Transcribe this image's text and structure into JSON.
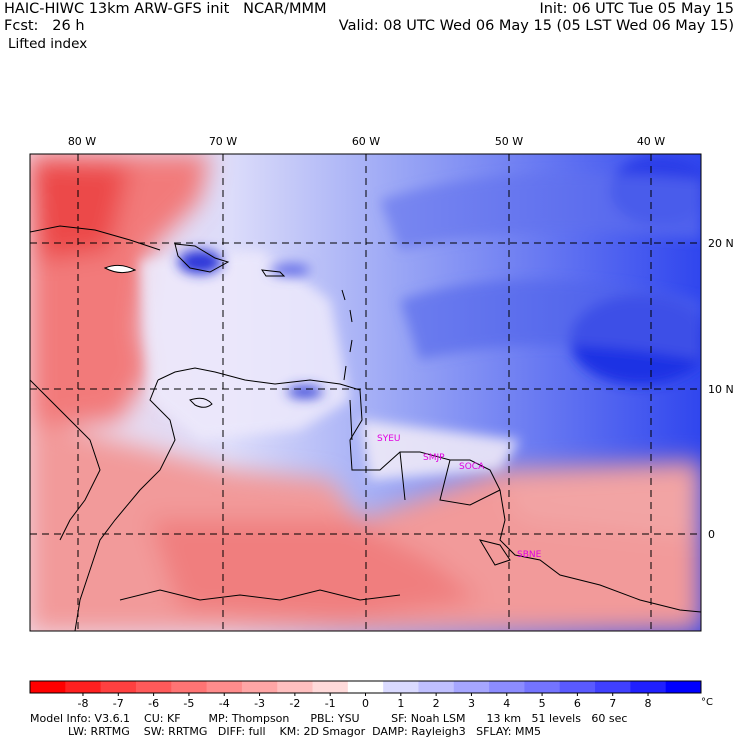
{
  "header": {
    "line1_left": "HAIC-HIWC 13km ARW-GFS init   NCAR/MMM",
    "line2_left": "Fcst:   26 h",
    "line1_right": "Init: 06 UTC Tue 05 May 15",
    "line2_right": "Valid: 08 UTC Wed 06 May 15 (05 LST Wed 06 May 15)",
    "field": "Lifted index"
  },
  "map": {
    "lon_labels": [
      "80 W",
      "70 W",
      "60 W",
      "50 W",
      "40 W"
    ],
    "lat_labels": [
      "20 N",
      "10 N",
      "0"
    ],
    "stations": [
      "SYEU",
      "SMJP",
      "SOCA",
      "SBNE"
    ],
    "station_color": "#e000e0",
    "warm_color": "#e83a3a",
    "cold_color": "#2a3ee0"
  },
  "colorbar": {
    "tick_labels": [
      "-8",
      "-7",
      "-6",
      "-5",
      "-4",
      "-3",
      "-2",
      "-1",
      "0",
      "1",
      "2",
      "3",
      "4",
      "5",
      "6",
      "7",
      "8"
    ],
    "unit": "°C",
    "colors": [
      "#ff0000",
      "#ff2020",
      "#ff4040",
      "#ff5a5a",
      "#ff7474",
      "#ff8c8c",
      "#ffa6a6",
      "#ffc0c0",
      "#ffdada",
      "#ffffff",
      "#dadaff",
      "#c0c0ff",
      "#a6a6ff",
      "#8c8cff",
      "#7474ff",
      "#5a5aff",
      "#4040ff",
      "#2020ff",
      "#0000ff"
    ]
  },
  "footer": {
    "line1": "Model Info: V3.6.1    CU: KF        MP: Thompson      PBL: YSU         SF: Noah LSM      13 km   51 levels   60 sec",
    "line2": "LW: RRTMG    SW: RRTMG   DIFF: full    KM: 2D Smagor  DAMP: Rayleigh3   SFLAY: MM5"
  }
}
